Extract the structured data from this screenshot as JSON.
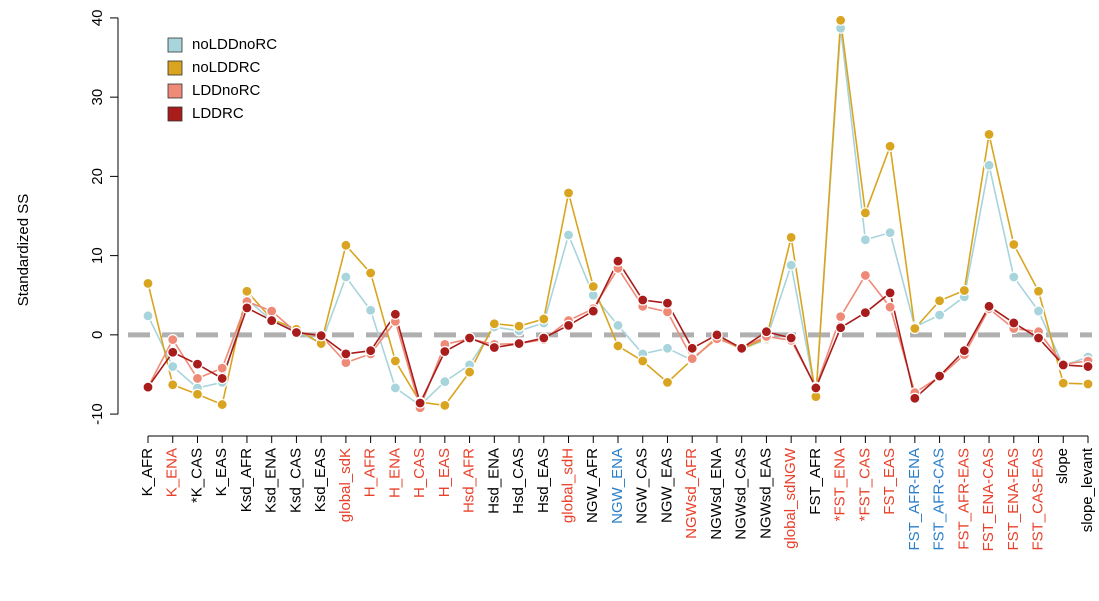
{
  "chart_data": {
    "type": "line",
    "y_label": "Standardized SS",
    "categories": [
      "K_AFR",
      "K_ENA",
      "*K_CAS",
      "K_EAS",
      "Ksd_AFR",
      "Ksd_ENA",
      "Ksd_CAS",
      "Ksd_EAS",
      "global_sdK",
      "H_AFR",
      "H_ENA",
      "H_CAS",
      "H_EAS",
      "Hsd_AFR",
      "Hsd_ENA",
      "Hsd_CAS",
      "Hsd_EAS",
      "global_sdH",
      "NGW_AFR",
      "NGW_ENA",
      "NGW_CAS",
      "NGW_EAS",
      "NGWsd_AFR",
      "NGWsd_ENA",
      "NGWsd_CAS",
      "NGWsd_EAS",
      "global_sdNGW",
      "FST_AFR",
      "*FST_ENA",
      "*FST_CAS",
      "FST_EAS",
      "FST_AFR-ENA",
      "FST_AFR-CAS",
      "FST_AFR-EAS",
      "FST_ENA-CAS",
      "FST_ENA-EAS",
      "FST_CAS-EAS",
      "slope",
      "slope_levant"
    ],
    "category_colors": [
      "#000000",
      "#e8402a",
      "#000000",
      "#000000",
      "#000000",
      "#000000",
      "#000000",
      "#000000",
      "#e8402a",
      "#e8402a",
      "#e8402a",
      "#e8402a",
      "#e8402a",
      "#e8402a",
      "#000000",
      "#000000",
      "#000000",
      "#e8402a",
      "#000000",
      "#2a7fc8",
      "#000000",
      "#000000",
      "#e8402a",
      "#000000",
      "#000000",
      "#000000",
      "#e8402a",
      "#000000",
      "#e8402a",
      "#e8402a",
      "#e8402a",
      "#2a7fc8",
      "#2a7fc8",
      "#e8402a",
      "#e8402a",
      "#e8402a",
      "#e8402a",
      "#000000",
      "#000000"
    ],
    "series": [
      {
        "name": "noLDDnoRC",
        "color": "#a8d4dc",
        "values": [
          2.4,
          -4,
          -6.7,
          -6,
          4.5,
          1.8,
          0.5,
          -1.1,
          7.3,
          3.1,
          -6.7,
          -8.9,
          -5.9,
          -3.8,
          1,
          0.5,
          1.5,
          12.6,
          5,
          1.2,
          -2.4,
          -1.7,
          -3.2,
          -0.3,
          -1.8,
          -0.6,
          8.8,
          -7.7,
          38.7,
          12,
          12.9,
          1,
          2.5,
          4.8,
          21.4,
          7.3,
          3,
          -3.9,
          -2.8
        ]
      },
      {
        "name": "noLDDRC",
        "color": "#d9a520",
        "values": [
          6.5,
          -6.3,
          -7.5,
          -8.8,
          5.5,
          2,
          0.7,
          -1.1,
          11.3,
          7.8,
          -3.3,
          -8.5,
          -8.9,
          -4.7,
          1.4,
          1.1,
          2,
          17.9,
          6.1,
          -1.4,
          -3.3,
          -6,
          -3.1,
          -0.3,
          -1.8,
          -0.4,
          12.3,
          -7.8,
          39.7,
          15.4,
          23.8,
          0.8,
          4.3,
          5.6,
          25.3,
          11.4,
          5.5,
          -6.1,
          -6.2
        ]
      },
      {
        "name": "LDDnoRC",
        "color": "#f08a78",
        "values": [
          -6.6,
          -0.6,
          -5.5,
          -4.2,
          4.2,
          3,
          0.3,
          -0.1,
          -3.5,
          -2.4,
          1.7,
          -9.2,
          -1.2,
          -0.5,
          -1.2,
          -1.1,
          -0.6,
          1.8,
          3.3,
          8.4,
          3.6,
          2.9,
          -3,
          -0.5,
          -1.6,
          -0.2,
          -0.7,
          -6.6,
          2.3,
          7.5,
          3.5,
          -7.3,
          -5.3,
          -2.5,
          3.3,
          0.8,
          0.4,
          -3.7,
          -3.3
        ]
      },
      {
        "name": "LDDRC",
        "color": "#a81c1c",
        "values": [
          -6.6,
          -2.2,
          -3.7,
          -5.5,
          3.4,
          1.8,
          0.3,
          -0.1,
          -2.4,
          -2,
          2.6,
          -8.6,
          -2.1,
          -0.4,
          -1.6,
          -1.1,
          -0.4,
          1.2,
          3,
          9.3,
          4.4,
          4,
          -1.7,
          0,
          -1.7,
          0.4,
          -0.4,
          -6.7,
          0.9,
          2.8,
          5.3,
          -8,
          -5.2,
          -2,
          3.6,
          1.5,
          -0.4,
          -3.8,
          -4
        ]
      }
    ],
    "reference_line": 0,
    "ylim": [
      -11,
      41
    ],
    "yticks": [
      -10,
      0,
      10,
      20,
      30,
      40
    ],
    "legend": "top-left"
  }
}
